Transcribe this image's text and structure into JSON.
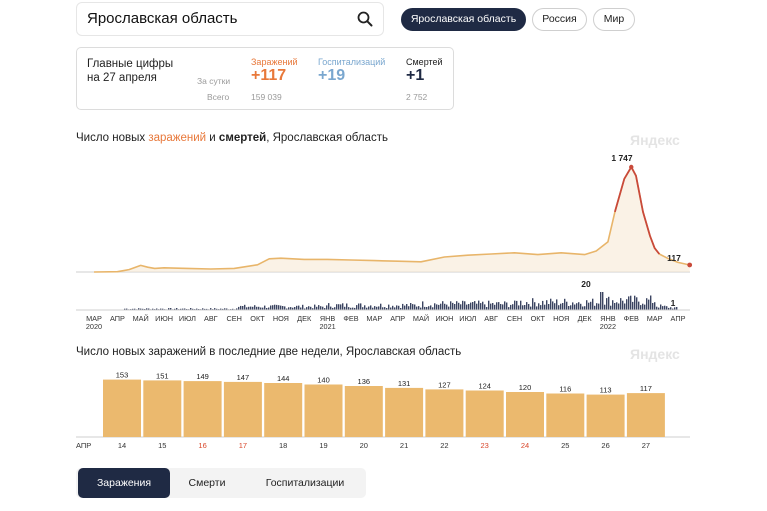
{
  "search": {
    "value": "Ярославская область"
  },
  "regions": [
    {
      "label": "Ярославская область",
      "active": true
    },
    {
      "label": "Россия",
      "active": false
    },
    {
      "label": "Мир",
      "active": false
    }
  ],
  "summary": {
    "title_line1": "Главные цифры",
    "title_line2": "на 27 апреля",
    "per_day_label": "За сутки",
    "total_label": "Всего",
    "infections": {
      "label": "Заражений",
      "today": "+117",
      "total": "159 039",
      "color": "#e8783a"
    },
    "hospitalizations": {
      "label": "Госпитализаций",
      "today": "+19",
      "total": "",
      "color": "#7aa7cf"
    },
    "deaths": {
      "label": "Смертей",
      "today": "+1",
      "total": "2 752",
      "color": "#1f2a44"
    }
  },
  "chart1": {
    "title_a": "Число новых ",
    "title_infections": "заражений",
    "title_b": " и ",
    "title_deaths": "смертей",
    "title_c": ", Ярославская область",
    "watermark": "Яндекс",
    "peak_label": "1 747",
    "last_label": "117",
    "deaths_peak_label": "20",
    "deaths_last_label": "1",
    "months": [
      "МАР",
      "АПР",
      "МАЙ",
      "ИЮН",
      "ИЮЛ",
      "АВГ",
      "СЕН",
      "ОКТ",
      "НОЯ",
      "ДЕК",
      "ЯНВ",
      "ФЕВ",
      "МАР",
      "АПР",
      "МАЙ",
      "ИЮН",
      "ИЮЛ",
      "АВГ",
      "СЕН",
      "ОКТ",
      "НОЯ",
      "ДЕК",
      "ЯНВ",
      "ФЕВ",
      "МАР",
      "АПР"
    ],
    "years": [
      {
        "label": "2020",
        "month_index": 0
      },
      {
        "label": "2021",
        "month_index": 10
      },
      {
        "label": "2022",
        "month_index": 22
      }
    ]
  },
  "chart2": {
    "title": "Число новых заражений в последние две недели, Ярославская область",
    "watermark": "Яндекс",
    "month_label": "АПР"
  },
  "chart_data": [
    {
      "type": "area",
      "title": "Число новых заражений и смертей, Ярославская область",
      "series": [
        {
          "name": "заражений",
          "x_month_index": [
            0,
            1,
            1.5,
            2,
            2.3,
            2.6,
            3,
            4,
            5,
            6,
            7,
            7.5,
            8,
            8.5,
            9,
            10,
            11,
            12,
            13,
            14,
            15,
            16,
            17,
            18,
            19,
            20,
            21,
            21.5,
            22,
            22.3,
            22.7,
            23,
            23.2,
            23.5,
            23.8,
            24,
            24.2,
            24.6,
            25,
            25.5
          ],
          "values": [
            0,
            5,
            40,
            110,
            80,
            60,
            70,
            60,
            50,
            60,
            120,
            220,
            230,
            220,
            210,
            210,
            200,
            190,
            180,
            170,
            250,
            280,
            300,
            320,
            290,
            320,
            290,
            350,
            500,
            1000,
            1550,
            1747,
            1600,
            1000,
            600,
            400,
            300,
            220,
            160,
            117
          ]
        },
        {
          "name": "смертей",
          "approx_range": [
            0,
            20
          ],
          "peak": 20,
          "last": 1
        }
      ]
    },
    {
      "type": "bar",
      "title": "Число новых заражений в последние две недели, Ярославская область",
      "categories": [
        "14",
        "15",
        "16",
        "17",
        "18",
        "19",
        "20",
        "21",
        "22",
        "23",
        "24",
        "25",
        "26",
        "27"
      ],
      "values": [
        153,
        151,
        149,
        147,
        144,
        140,
        136,
        131,
        127,
        124,
        120,
        116,
        113,
        117
      ],
      "weekend": [
        "16",
        "17",
        "23",
        "24"
      ],
      "color": "#ebb96e"
    }
  ],
  "tabs": [
    {
      "label": "Заражения",
      "active": true
    },
    {
      "label": "Смерти",
      "active": false
    },
    {
      "label": "Госпитализации",
      "active": false
    }
  ]
}
